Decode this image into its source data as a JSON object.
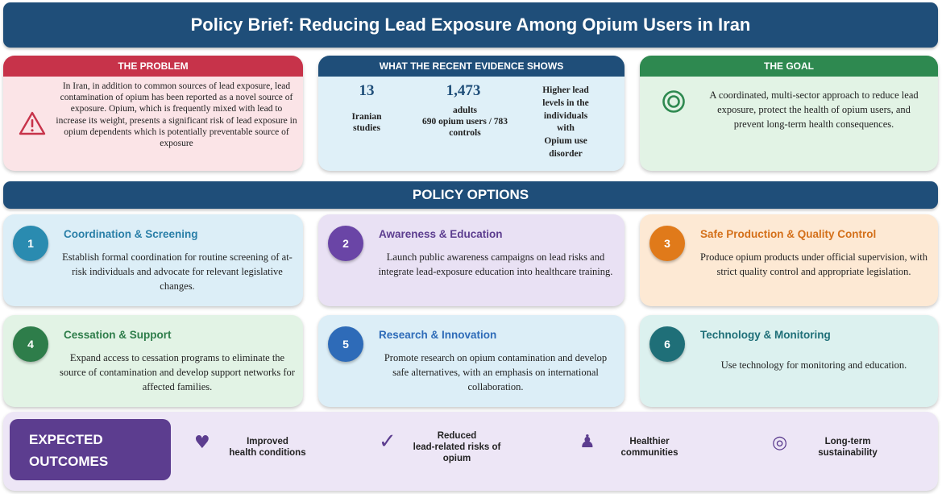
{
  "title": "Policy Brief: Reducing Lead Exposure Among Opium Users in Iran",
  "colors": {
    "navy": "#1f4e79",
    "problem_red": "#c7334a",
    "goal_green": "#2e8950",
    "outcomes_purple": "#5c3d8f"
  },
  "problem": {
    "heading": "THE PROBLEM",
    "icon": "warning-triangle-icon",
    "text": "In Iran, in addition to common sources of lead exposure, lead contamination of opium has been reported as a novel source of exposure. Opium, which is frequently mixed with lead to increase its weight, presents a significant risk of lead exposure in opium dependents which is potentially preventable source of exposure"
  },
  "evidence": {
    "heading": "WHAT THE RECENT EVIDENCE SHOWS",
    "studies_count": "13",
    "studies_label": "Iranian\nstudies",
    "adults_count": "1,473",
    "adults_label": "adults\n690 opium users / 783\ncontrols",
    "finding": "Higher lead\nlevels in the\nindividuals\nwith\nOpium use\ndisorder"
  },
  "goal": {
    "heading": "THE GOAL",
    "icon": "target-icon",
    "text": "A coordinated, multi-sector approach to reduce lead exposure, protect the health of opium users, and prevent long-term health consequences."
  },
  "policy_options": {
    "heading": "POLICY OPTIONS",
    "items": [
      {
        "number": "1",
        "title": "Coordination & Screening",
        "text": "Establish formal coordination for routine screening of at-risk individuals and advocate for relevant legislative changes.",
        "color": "#2a8bb0",
        "bg": "#dceef7",
        "title_color": "#2a7fa8"
      },
      {
        "number": "2",
        "title": "Awareness & Education",
        "text": "Launch public awareness campaigns on lead risks and integrate lead-exposure education into healthcare training.",
        "color": "#6a45a6",
        "bg": "#e9e1f4",
        "title_color": "#5c3d8f"
      },
      {
        "number": "3",
        "title": "Safe Production & Quality Control",
        "text": "Produce opium products under official supervision, with strict quality control and appropriate legislation.",
        "color": "#e07a1a",
        "bg": "#fde9d4",
        "title_color": "#d4701a"
      },
      {
        "number": "4",
        "title": "Cessation & Support",
        "text": "Expand access to cessation programs to eliminate the source of contamination and develop support networks for affected families.",
        "color": "#2e7d4a",
        "bg": "#e2f3e5",
        "title_color": "#2e7d4a"
      },
      {
        "number": "5",
        "title": "Research & Innovation",
        "text": "Promote research on opium contamination and develop safe alternatives, with an emphasis on international collaboration.",
        "color": "#2e6bb8",
        "bg": "#dceef7",
        "title_color": "#2e6bb8"
      },
      {
        "number": "6",
        "title": "Technology & Monitoring",
        "text": "Use technology for monitoring and education.",
        "color": "#1f6f78",
        "bg": "#dcf1ef",
        "title_color": "#1f6f78"
      }
    ]
  },
  "outcomes": {
    "heading": "EXPECTED\nOUTCOMES",
    "items": [
      {
        "icon": "heart-icon",
        "glyph": "♥",
        "label": "Improved\nhealth conditions"
      },
      {
        "icon": "checkmark-icon",
        "glyph": "✓",
        "label": "Reduced\nlead-related risks of\nopium"
      },
      {
        "icon": "people-icon",
        "glyph": "♟",
        "label": "Healthier\ncommunities"
      },
      {
        "icon": "target-icon",
        "glyph": "◎",
        "label": "Long-term\nsustainability"
      }
    ]
  }
}
